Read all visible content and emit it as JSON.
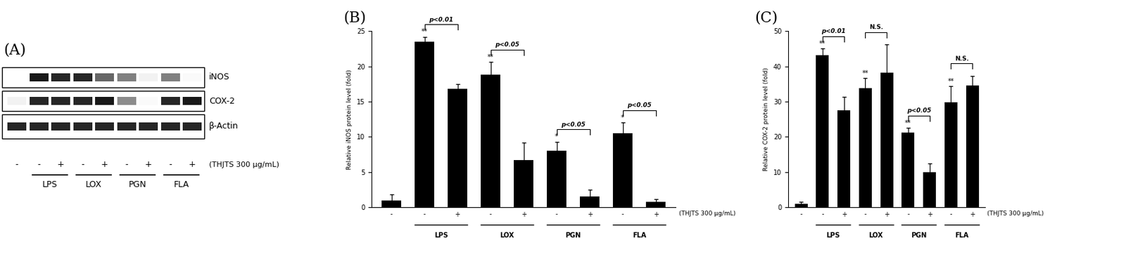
{
  "blot": {
    "panel_label": "(A)",
    "rows": [
      {
        "name": "iNOS",
        "intensity": [
          0.0,
          0.9,
          0.85,
          0.85,
          0.6,
          0.5,
          0.05,
          0.5,
          0.02
        ]
      },
      {
        "name": "COX-2",
        "intensity": [
          0.05,
          0.85,
          0.85,
          0.85,
          0.9,
          0.45,
          0.02,
          0.85,
          0.9
        ]
      },
      {
        "name": "β-Actin",
        "intensity": [
          0.85,
          0.85,
          0.85,
          0.85,
          0.85,
          0.85,
          0.85,
          0.85,
          0.85
        ]
      }
    ],
    "treatment": [
      "-",
      "-",
      "+",
      "-",
      "+",
      "-",
      "+",
      "-",
      "+"
    ],
    "treatment_label": "(THJTS 300 μg/mL)",
    "groups": [
      "LPS",
      "LOX",
      "PGN",
      "FLA"
    ]
  },
  "chart_data": [
    {
      "type": "bar",
      "title": "(B)",
      "y_label": "Relative iNOS protein level (fold)",
      "categories": [
        "-",
        "-",
        "+",
        "-",
        "+",
        "-",
        "+",
        "-",
        "+"
      ],
      "treatment_label": "(THJTS 300 μg/mL)",
      "groups": [
        "LPS",
        "LOX",
        "PGN",
        "FLA"
      ],
      "values": [
        1.0,
        23.5,
        16.8,
        18.8,
        6.7,
        8.0,
        1.5,
        10.5,
        0.8
      ],
      "errors": [
        0.8,
        0.7,
        0.7,
        1.8,
        2.5,
        1.3,
        1.0,
        1.5,
        0.3
      ],
      "significance": [
        "",
        "**",
        "",
        "**",
        "",
        "*",
        "",
        "*",
        ""
      ],
      "comparisons": [
        {
          "from": 1,
          "to": 2,
          "text": "p<0.01"
        },
        {
          "from": 3,
          "to": 4,
          "text": "p<0.05"
        },
        {
          "from": 5,
          "to": 6,
          "text": "p<0.05"
        },
        {
          "from": 7,
          "to": 8,
          "text": "p<0.05"
        }
      ],
      "color": "#000000",
      "ylim": [
        0,
        25
      ],
      "yticks": [
        0,
        5,
        10,
        15,
        20,
        25
      ]
    },
    {
      "type": "bar",
      "title": "(C)",
      "y_label": "Relative COX-2 protein level (fold)",
      "categories": [
        "-",
        "-",
        "+",
        "-",
        "+",
        "-",
        "+",
        "-",
        "+"
      ],
      "treatment_label": "(THJTS 300 μg/mL)",
      "groups": [
        "LPS",
        "LOX",
        "PGN",
        "FLA"
      ],
      "values": [
        1.0,
        43.2,
        27.5,
        33.8,
        38.2,
        21.2,
        10.0,
        29.8,
        34.5
      ],
      "errors": [
        0.5,
        1.8,
        3.8,
        2.8,
        8.0,
        1.3,
        2.5,
        4.5,
        2.8
      ],
      "significance": [
        "",
        "**",
        "",
        "**",
        "",
        "**",
        "",
        "**",
        ""
      ],
      "comparisons": [
        {
          "from": 1,
          "to": 2,
          "text": "p<0.01"
        },
        {
          "from": 3,
          "to": 4,
          "text": "N.S."
        },
        {
          "from": 5,
          "to": 6,
          "text": "p<0.05"
        },
        {
          "from": 7,
          "to": 8,
          "text": "N.S."
        }
      ],
      "color": "#000000",
      "ylim": [
        0,
        50
      ],
      "yticks": [
        0,
        10,
        20,
        30,
        40,
        50
      ]
    }
  ]
}
